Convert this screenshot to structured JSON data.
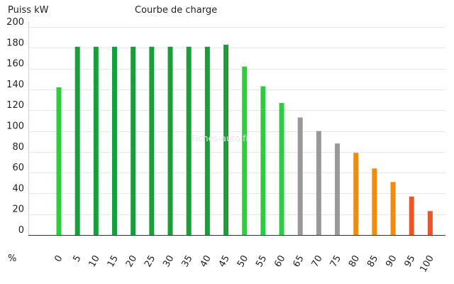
{
  "chart_data": {
    "type": "bar",
    "title": "Courbe de charge",
    "ylabel": "Puiss kW",
    "xlabel": "%",
    "ylim": [
      0,
      200
    ],
    "yticks": [
      0,
      20,
      40,
      60,
      80,
      100,
      120,
      140,
      160,
      180,
      200
    ],
    "grid": true,
    "watermark": "Fiches-auto.fr",
    "categories": [
      "0",
      "5",
      "10",
      "15",
      "20",
      "25",
      "30",
      "35",
      "40",
      "45",
      "50",
      "55",
      "60",
      "65",
      "70",
      "75",
      "80",
      "85",
      "90",
      "95",
      "100"
    ],
    "values": [
      142,
      181,
      181,
      181,
      181,
      181,
      181,
      181,
      181,
      183,
      162,
      143,
      127,
      113,
      100,
      88,
      79,
      64,
      51,
      37,
      23
    ],
    "colors": [
      "#2ecc40",
      "#1a9e3a",
      "#1a9e3a",
      "#1a9e3a",
      "#1a9e3a",
      "#1a9e3a",
      "#1a9e3a",
      "#1a9e3a",
      "#1a9e3a",
      "#1a9e3a",
      "#2ecc40",
      "#2ecc40",
      "#2ecc40",
      "#999999",
      "#999999",
      "#999999",
      "#f28c0f",
      "#f28c0f",
      "#f28c0f",
      "#f5531e",
      "#f5531e"
    ]
  }
}
